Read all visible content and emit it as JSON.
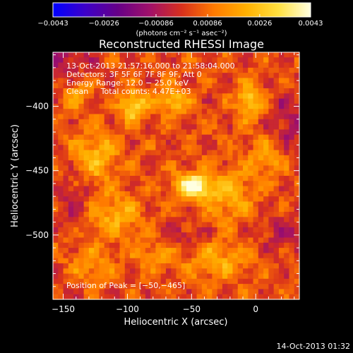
{
  "chart_data": {
    "type": "heatmap",
    "title": "Reconstructed RHESSI Image",
    "xlabel": "Heliocentric X (arcsec)",
    "ylabel": "Heliocentric Y (arcsec)",
    "xlim": [
      -158,
      34
    ],
    "ylim": [
      -550,
      -358
    ],
    "x_ticks": [
      -150,
      -100,
      -50,
      0
    ],
    "x_tick_labels": [
      "−150",
      "−100",
      "−50",
      "0"
    ],
    "y_ticks": [
      -400,
      -450,
      -500
    ],
    "y_tick_labels": [
      "−400",
      "−450",
      "−500"
    ],
    "colorbar": {
      "min": -0.0043,
      "max": 0.0043,
      "ticks": [
        -0.0043,
        -0.0026,
        -0.00086,
        0.00086,
        0.0026,
        0.0043
      ],
      "tick_labels": [
        "−0.0043",
        "−0.0026",
        "−0.00086",
        "0.00086",
        "0.0026",
        "0.0043"
      ],
      "units_label": "(photons cm⁻² s⁻¹ asec⁻²)",
      "colormap": [
        "#0000ff",
        "#3d00c8",
        "#660088",
        "#a0106a",
        "#d8301c",
        "#ff7a00",
        "#ffb000",
        "#ffe040",
        "#ffffe0"
      ]
    },
    "annotations": {
      "time_range": "13-Oct-2013 21:57:16.000 to 21:58:04.000",
      "detectors": "Detectors: 3F 5F 6F 7F 8F 9F, Att 0",
      "energy_range": "Energy Range: 12.0 − 25.0 keV",
      "clean_counts": "Clean     Total counts: 4.47E+03",
      "peak_position": "Position of Peak = [−50,−465]"
    },
    "peak": {
      "x": -50,
      "y": -465
    },
    "sources": [
      {
        "x": -48,
        "y": -462,
        "amp": 0.0043,
        "sx": 10,
        "sy": 7
      },
      {
        "x": -95,
        "y": -400,
        "amp": 0.003,
        "sx": 7,
        "sy": 8
      },
      {
        "x": -65,
        "y": -395,
        "amp": 0.0024,
        "sx": 9,
        "sy": 7
      },
      {
        "x": -5,
        "y": -395,
        "amp": 0.0024,
        "sx": 7,
        "sy": 10
      },
      {
        "x": -125,
        "y": -440,
        "amp": 0.002,
        "sx": 12,
        "sy": 14
      },
      {
        "x": -110,
        "y": -485,
        "amp": 0.0017,
        "sx": 14,
        "sy": 12
      },
      {
        "x": -20,
        "y": -470,
        "amp": 0.0018,
        "sx": 12,
        "sy": 14
      },
      {
        "x": 10,
        "y": -440,
        "amp": 0.0015,
        "sx": 10,
        "sy": 12
      },
      {
        "x": -140,
        "y": -390,
        "amp": 0.0014,
        "sx": 8,
        "sy": 10
      },
      {
        "x": -30,
        "y": -520,
        "amp": 0.0016,
        "sx": 18,
        "sy": 10
      },
      {
        "x": -130,
        "y": -525,
        "amp": 0.0013,
        "sx": 12,
        "sy": 12
      },
      {
        "x": -80,
        "y": -515,
        "amp": 0.0012,
        "sx": 10,
        "sy": 8
      }
    ],
    "negative_regions": [
      {
        "x": -150,
        "y": -365,
        "amp": -0.0012,
        "sx": 14,
        "sy": 14
      },
      {
        "x": -140,
        "y": -470,
        "amp": -0.001,
        "sx": 10,
        "sy": 14
      },
      {
        "x": 25,
        "y": -415,
        "amp": -0.0012,
        "sx": 10,
        "sy": 18
      },
      {
        "x": 20,
        "y": -500,
        "amp": -0.0009,
        "sx": 12,
        "sy": 12
      },
      {
        "x": -55,
        "y": -500,
        "amp": -0.0009,
        "sx": 12,
        "sy": 8
      },
      {
        "x": -145,
        "y": -540,
        "amp": -0.0006,
        "sx": 12,
        "sy": 10
      }
    ]
  },
  "footer": {
    "timestamp": "14-Oct-2013 01:32"
  }
}
